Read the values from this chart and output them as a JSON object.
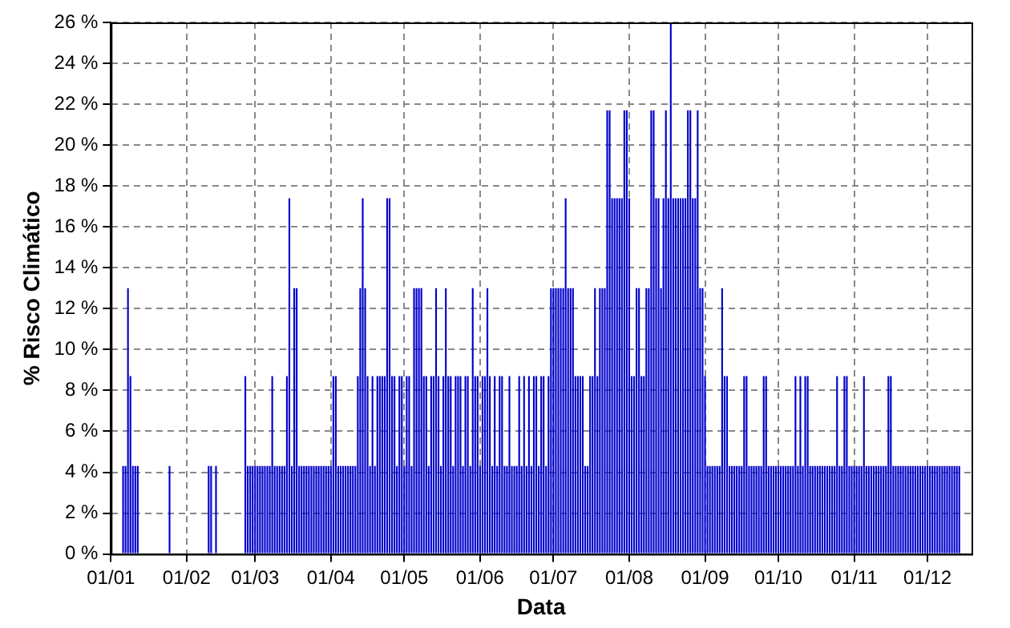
{
  "chart_data": {
    "type": "bar",
    "xlabel": "Data",
    "ylabel": "% Risco Climático",
    "color": "#0000cc",
    "grid": true,
    "legend": false,
    "xlim": [
      "--01-01",
      "--12-19"
    ],
    "xticks": [
      {
        "value": "--01-01",
        "label": "01/01"
      },
      {
        "value": "--02-01",
        "label": "01/02"
      },
      {
        "value": "--03-01",
        "label": "01/03"
      },
      {
        "value": "--04-01",
        "label": "01/04"
      },
      {
        "value": "--05-01",
        "label": "01/05"
      },
      {
        "value": "--06-01",
        "label": "01/06"
      },
      {
        "value": "--07-01",
        "label": "01/07"
      },
      {
        "value": "--08-01",
        "label": "01/08"
      },
      {
        "value": "--09-01",
        "label": "01/09"
      },
      {
        "value": "--10-01",
        "label": "01/10"
      },
      {
        "value": "--11-01",
        "label": "01/11"
      },
      {
        "value": "--12-01",
        "label": "01/12"
      }
    ],
    "ylim": [
      0,
      26
    ],
    "yticks": [
      {
        "value": 0,
        "label": "0 %"
      },
      {
        "value": 2,
        "label": "2 %"
      },
      {
        "value": 4,
        "label": "4 %"
      },
      {
        "value": 6,
        "label": "6 %"
      },
      {
        "value": 8,
        "label": "8 %"
      },
      {
        "value": 10,
        "label": "10 %"
      },
      {
        "value": 12,
        "label": "12 %"
      },
      {
        "value": 14,
        "label": "14 %"
      },
      {
        "value": 16,
        "label": "16 %"
      },
      {
        "value": 18,
        "label": "18 %"
      },
      {
        "value": 20,
        "label": "20 %"
      },
      {
        "value": 22,
        "label": "22 %"
      },
      {
        "value": 24,
        "label": "24 %"
      },
      {
        "value": 26,
        "label": "26 %"
      }
    ],
    "x": [
      "--01-02",
      "--01-03",
      "--01-04",
      "--01-05",
      "--01-06",
      "--01-07",
      "--01-08",
      "--01-09",
      "--01-10",
      "--01-11",
      "--01-12",
      "--01-13",
      "--01-14",
      "--01-15",
      "--01-16",
      "--01-17",
      "--01-18",
      "--01-19",
      "--01-20",
      "--01-21",
      "--01-22",
      "--01-23",
      "--01-24",
      "--01-25",
      "--01-26",
      "--01-27",
      "--01-28",
      "--01-29",
      "--01-30",
      "--01-31",
      "--02-01",
      "--02-02",
      "--02-03",
      "--02-04",
      "--02-05",
      "--02-06",
      "--02-07",
      "--02-08",
      "--02-09",
      "--02-10",
      "--02-11",
      "--02-12",
      "--02-13",
      "--02-14",
      "--02-15",
      "--02-16",
      "--02-17",
      "--02-18",
      "--02-19",
      "--02-20",
      "--02-21",
      "--02-22",
      "--02-23",
      "--02-24",
      "--02-25",
      "--02-26",
      "--02-27",
      "--02-28",
      "--03-01",
      "--03-02",
      "--03-03",
      "--03-04",
      "--03-05",
      "--03-06",
      "--03-07",
      "--03-08",
      "--03-09",
      "--03-10",
      "--03-11",
      "--03-12",
      "--03-13",
      "--03-14",
      "--03-15",
      "--03-16",
      "--03-17",
      "--03-18",
      "--03-19",
      "--03-20",
      "--03-21",
      "--03-22",
      "--03-23",
      "--03-24",
      "--03-25",
      "--03-26",
      "--03-27",
      "--03-28",
      "--03-29",
      "--03-30",
      "--03-31",
      "--04-01",
      "--04-02",
      "--04-03",
      "--04-04",
      "--04-05",
      "--04-06",
      "--04-07",
      "--04-08",
      "--04-09",
      "--04-10",
      "--04-11",
      "--04-12",
      "--04-13",
      "--04-14",
      "--04-15",
      "--04-16",
      "--04-17",
      "--04-18",
      "--04-19",
      "--04-20",
      "--04-21",
      "--04-22",
      "--04-23",
      "--04-24",
      "--04-25",
      "--04-26",
      "--04-27",
      "--04-28",
      "--04-29",
      "--04-30",
      "--05-01",
      "--05-02",
      "--05-03",
      "--05-04",
      "--05-05",
      "--05-06",
      "--05-07",
      "--05-08",
      "--05-09",
      "--05-10",
      "--05-11",
      "--05-12",
      "--05-13",
      "--05-14",
      "--05-15",
      "--05-16",
      "--05-17",
      "--05-18",
      "--05-19",
      "--05-20",
      "--05-21",
      "--05-22",
      "--05-23",
      "--05-24",
      "--05-25",
      "--05-26",
      "--05-27",
      "--05-28",
      "--05-29",
      "--05-30",
      "--05-31",
      "--06-01",
      "--06-02",
      "--06-03",
      "--06-04",
      "--06-05",
      "--06-06",
      "--06-07",
      "--06-08",
      "--06-09",
      "--06-10",
      "--06-11",
      "--06-12",
      "--06-13",
      "--06-14",
      "--06-15",
      "--06-16",
      "--06-17",
      "--06-18",
      "--06-19",
      "--06-20",
      "--06-21",
      "--06-22",
      "--06-23",
      "--06-24",
      "--06-25",
      "--06-26",
      "--06-27",
      "--06-28",
      "--06-29",
      "--06-30",
      "--07-01",
      "--07-02",
      "--07-03",
      "--07-04",
      "--07-05",
      "--07-06",
      "--07-07",
      "--07-08",
      "--07-09",
      "--07-10",
      "--07-11",
      "--07-12",
      "--07-13",
      "--07-14",
      "--07-15",
      "--07-16",
      "--07-17",
      "--07-18",
      "--07-19",
      "--07-20",
      "--07-21",
      "--07-22",
      "--07-23",
      "--07-24",
      "--07-25",
      "--07-26",
      "--07-27",
      "--07-28",
      "--07-29",
      "--07-30",
      "--07-31",
      "--08-01",
      "--08-02",
      "--08-03",
      "--08-04",
      "--08-05",
      "--08-06",
      "--08-07",
      "--08-08",
      "--08-09",
      "--08-10",
      "--08-11",
      "--08-12",
      "--08-13",
      "--08-14",
      "--08-15",
      "--08-16",
      "--08-17",
      "--08-18",
      "--08-19",
      "--08-20",
      "--08-21",
      "--08-22",
      "--08-23",
      "--08-24",
      "--08-25",
      "--08-26",
      "--08-27",
      "--08-28",
      "--08-29",
      "--08-30",
      "--08-31",
      "--09-01",
      "--09-02",
      "--09-03",
      "--09-04",
      "--09-05",
      "--09-06",
      "--09-07",
      "--09-08",
      "--09-09",
      "--09-10",
      "--09-11",
      "--09-12",
      "--09-13",
      "--09-14",
      "--09-15",
      "--09-16",
      "--09-17",
      "--09-18",
      "--09-19",
      "--09-20",
      "--09-21",
      "--09-22",
      "--09-23",
      "--09-24",
      "--09-25",
      "--09-26",
      "--09-27",
      "--09-28",
      "--09-29",
      "--09-30",
      "--10-01",
      "--10-02",
      "--10-03",
      "--10-04",
      "--10-05",
      "--10-06",
      "--10-07",
      "--10-08",
      "--10-09",
      "--10-10",
      "--10-11",
      "--10-12",
      "--10-13",
      "--10-14",
      "--10-15",
      "--10-16",
      "--10-17",
      "--10-18",
      "--10-19",
      "--10-20",
      "--10-21",
      "--10-22",
      "--10-23",
      "--10-24",
      "--10-25",
      "--10-26",
      "--10-27",
      "--10-28",
      "--10-29",
      "--10-30",
      "--10-31",
      "--11-01",
      "--11-02",
      "--11-03",
      "--11-04",
      "--11-05",
      "--11-06",
      "--11-07",
      "--11-08",
      "--11-09",
      "--11-10",
      "--11-11",
      "--11-12",
      "--11-13",
      "--11-14",
      "--11-15",
      "--11-16",
      "--11-17",
      "--11-18",
      "--11-19",
      "--11-20",
      "--11-21",
      "--11-22",
      "--11-23",
      "--11-24",
      "--11-25",
      "--11-26",
      "--11-27",
      "--11-28",
      "--11-29",
      "--11-30",
      "--12-01",
      "--12-02",
      "--12-03",
      "--12-04",
      "--12-05",
      "--12-06",
      "--12-07",
      "--12-08",
      "--12-09",
      "--12-10",
      "--12-11",
      "--12-12",
      "--12-13",
      "--12-14"
    ],
    "values": [
      0,
      0,
      0,
      0,
      4.3,
      4.3,
      13,
      8.7,
      4.3,
      4.3,
      4.3,
      0,
      0,
      0,
      0,
      0,
      0,
      0,
      0,
      0,
      0,
      0,
      0,
      4.3,
      0,
      0,
      0,
      0,
      0,
      0,
      0,
      0,
      0,
      0,
      0,
      0,
      0,
      0,
      0,
      4.3,
      4.3,
      0,
      4.3,
      0,
      0,
      0,
      0,
      0,
      0,
      0,
      0,
      0,
      0,
      0,
      8.7,
      4.3,
      4.3,
      4.3,
      4.3,
      4.3,
      4.3,
      4.3,
      4.3,
      4.3,
      4.3,
      8.7,
      4.3,
      4.3,
      4.3,
      4.3,
      4.3,
      8.7,
      17.4,
      4.3,
      13,
      13,
      4.3,
      4.3,
      4.3,
      4.3,
      4.3,
      4.3,
      4.3,
      4.3,
      4.3,
      4.3,
      4.3,
      4.3,
      4.3,
      4.3,
      8.7,
      8.7,
      4.3,
      4.3,
      4.3,
      4.3,
      4.3,
      4.3,
      4.3,
      4.3,
      8.7,
      13,
      17.4,
      13,
      8.7,
      4.3,
      8.7,
      4.3,
      8.7,
      8.7,
      8.7,
      8.7,
      17.4,
      17.4,
      8.7,
      8.7,
      4.3,
      8.7,
      8.7,
      4.3,
      8.7,
      8.7,
      4.3,
      13,
      13,
      13,
      13,
      8.7,
      8.7,
      4.3,
      8.7,
      8.7,
      13,
      8.7,
      4.3,
      8.7,
      13,
      8.7,
      8.7,
      4.3,
      8.7,
      8.7,
      8.7,
      4.3,
      8.7,
      8.7,
      4.3,
      13,
      8.7,
      8.7,
      4.3,
      8.7,
      8.7,
      13,
      8.7,
      4.3,
      8.7,
      4.3,
      8.7,
      8.7,
      4.3,
      4.3,
      8.7,
      4.3,
      4.3,
      4.3,
      8.7,
      4.3,
      8.7,
      4.3,
      8.7,
      4.3,
      8.7,
      8.7,
      4.3,
      8.7,
      8.7,
      4.3,
      8.7,
      13,
      13,
      13,
      13,
      13,
      13,
      17.4,
      13,
      13,
      13,
      8.7,
      8.7,
      8.7,
      8.7,
      4.3,
      4.3,
      8.7,
      8.7,
      13,
      8.7,
      13,
      13,
      13,
      21.7,
      21.7,
      17.4,
      17.4,
      17.4,
      17.4,
      17.4,
      21.7,
      21.7,
      17.4,
      8.7,
      8.7,
      13,
      13,
      8.7,
      8.7,
      13,
      13,
      21.7,
      21.7,
      17.4,
      17.4,
      13,
      17.4,
      21.7,
      17.4,
      26,
      17.4,
      17.4,
      17.4,
      17.4,
      17.4,
      17.4,
      21.7,
      21.7,
      17.4,
      17.4,
      21.7,
      13,
      13,
      8.7,
      4.3,
      4.3,
      4.3,
      4.3,
      4.3,
      4.3,
      13,
      8.7,
      8.7,
      4.3,
      4.3,
      4.3,
      4.3,
      4.3,
      4.3,
      8.7,
      8.7,
      4.3,
      4.3,
      4.3,
      4.3,
      4.3,
      4.3,
      8.7,
      8.7,
      4.3,
      4.3,
      4.3,
      4.3,
      4.3,
      4.3,
      4.3,
      4.3,
      4.3,
      4.3,
      4.3,
      8.7,
      4.3,
      8.7,
      4.3,
      8.7,
      8.7,
      4.3,
      4.3,
      4.3,
      4.3,
      4.3,
      4.3,
      4.3,
      4.3,
      4.3,
      4.3,
      4.3,
      8.7,
      4.3,
      4.3,
      8.7,
      8.7,
      4.3,
      4.3,
      4.3,
      4.3,
      4.3,
      4.3,
      8.7,
      4.3,
      4.3,
      4.3,
      4.3,
      4.3,
      4.3,
      4.3,
      4.3,
      4.3,
      8.7,
      8.7,
      4.3,
      4.3,
      4.3,
      4.3,
      4.3,
      4.3,
      4.3,
      4.3,
      4.3,
      4.3,
      4.3,
      4.3,
      4.3,
      4.3,
      4.3,
      4.3,
      4.3,
      4.3,
      4.3,
      4.3,
      4.3,
      4.3,
      4.3,
      4.3,
      4.3,
      4.3,
      4.3,
      4.3
    ]
  }
}
